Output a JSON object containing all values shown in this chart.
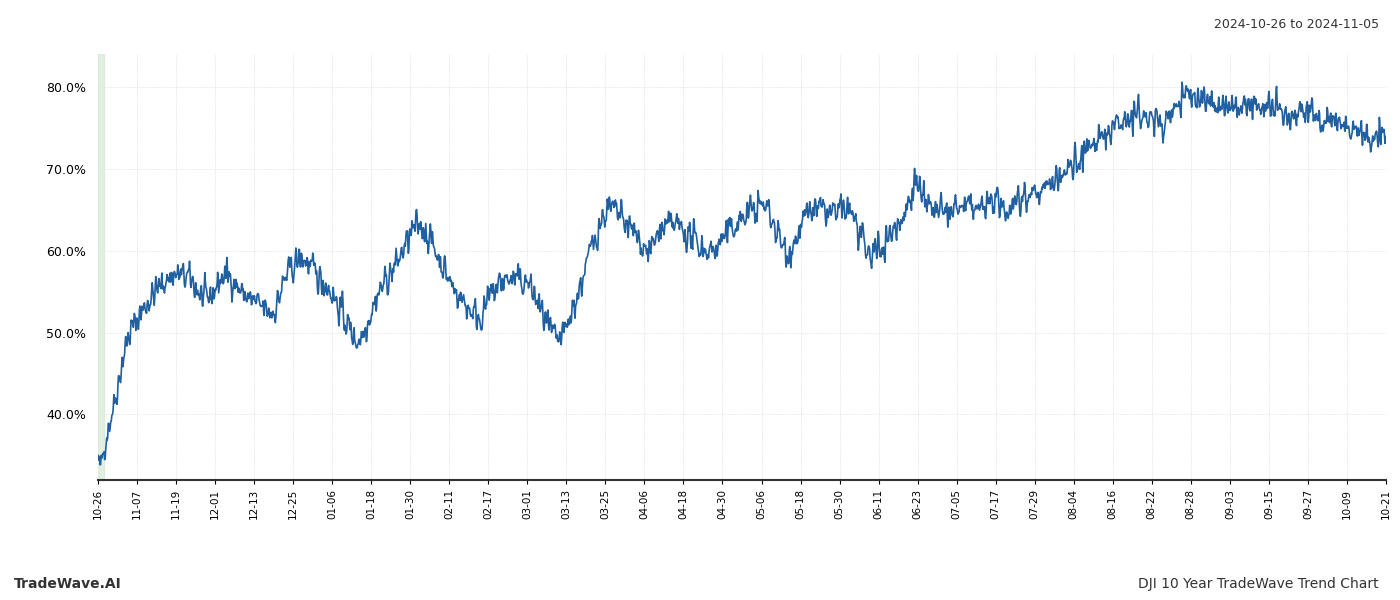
{
  "title_date": "2024-10-26 to 2024-11-05",
  "footer_left": "TradeWave.AI",
  "footer_right": "DJI 10 Year TradeWave Trend Chart",
  "line_color": "#2060a0",
  "line_width": 1.2,
  "highlight_color": "#d6ead6",
  "highlight_alpha": 0.7,
  "ylim": [
    32.0,
    84.0
  ],
  "yticks": [
    40.0,
    50.0,
    60.0,
    70.0,
    80.0
  ],
  "background_color": "#ffffff",
  "grid_color": "#d0d0d0",
  "grid_style": "dotted",
  "x_labels": [
    "10-26",
    "11-07",
    "11-19",
    "12-01",
    "12-13",
    "12-25",
    "01-06",
    "01-18",
    "01-30",
    "02-11",
    "02-17",
    "03-01",
    "03-13",
    "03-25",
    "04-06",
    "04-18",
    "04-30",
    "05-06",
    "05-18",
    "05-30",
    "06-11",
    "06-23",
    "07-05",
    "07-17",
    "07-29",
    "08-04",
    "08-16",
    "08-22",
    "08-28",
    "09-03",
    "09-15",
    "09-27",
    "10-09",
    "10-21"
  ]
}
